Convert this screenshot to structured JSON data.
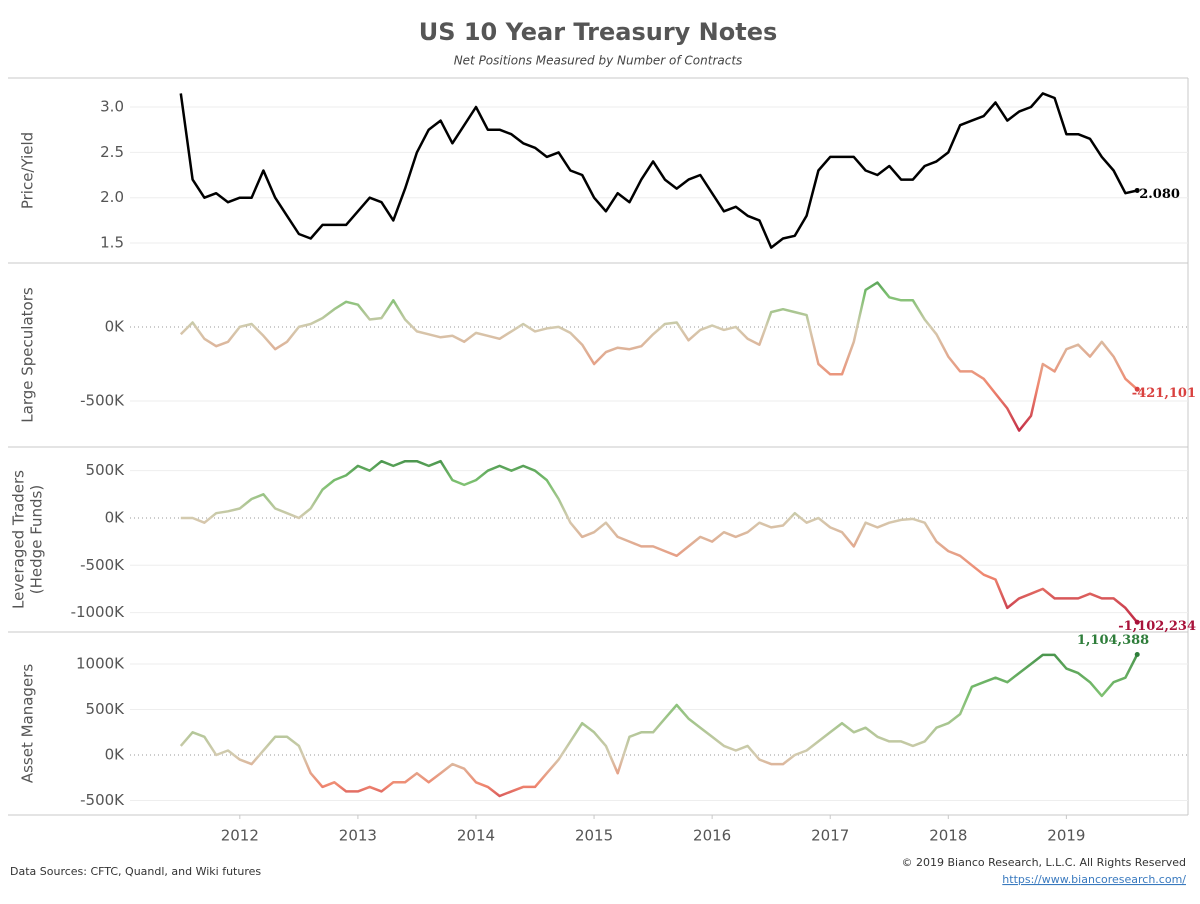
{
  "chart_data": {
    "type": "line",
    "title": "US 10 Year Treasury Notes",
    "subtitle": "Net Positions Measured by Number of Contracts",
    "source": "Data Sources: CFTC, Quandl, and Wiki futures",
    "copyright": "© 2019 Bianco Research, L.L.C. All Rights Reserved",
    "link": "https://www.biancoresearch.com/",
    "xlim": [
      2011.07,
      2020.03
    ],
    "xticks": [
      2012,
      2013,
      2014,
      2015,
      2016,
      2017,
      2018,
      2019
    ],
    "gradient": [
      "#b5123a",
      "#f08870",
      "#d4cbb0",
      "#7cc070",
      "#2e7d3a"
    ],
    "x": [
      2011.5,
      2011.6,
      2011.7,
      2011.8,
      2011.9,
      2012.0,
      2012.1,
      2012.2,
      2012.3,
      2012.4,
      2012.5,
      2012.6,
      2012.7,
      2012.8,
      2012.9,
      2013.0,
      2013.1,
      2013.2,
      2013.3,
      2013.4,
      2013.5,
      2013.6,
      2013.7,
      2013.8,
      2013.9,
      2014.0,
      2014.1,
      2014.2,
      2014.3,
      2014.4,
      2014.5,
      2014.6,
      2014.7,
      2014.8,
      2014.9,
      2015.0,
      2015.1,
      2015.2,
      2015.3,
      2015.4,
      2015.5,
      2015.6,
      2015.7,
      2015.8,
      2015.9,
      2016.0,
      2016.1,
      2016.2,
      2016.3,
      2016.4,
      2016.5,
      2016.6,
      2016.7,
      2016.8,
      2016.9,
      2017.0,
      2017.1,
      2017.2,
      2017.3,
      2017.4,
      2017.5,
      2017.6,
      2017.7,
      2017.8,
      2017.9,
      2018.0,
      2018.1,
      2018.2,
      2018.3,
      2018.4,
      2018.5,
      2018.6,
      2018.7,
      2018.8,
      2018.9,
      2019.0,
      2019.1,
      2019.2,
      2019.3,
      2019.4,
      2019.5,
      2019.6
    ],
    "panels": [
      {
        "ylabel": [
          "Price/Yield"
        ],
        "color": "#000000",
        "label_color": "#000000",
        "ylim": [
          1.28,
          3.32
        ],
        "yticks": [
          1.5,
          {
            "value": 2,
            "label": "2.0"
          },
          2.5,
          {
            "value": 3,
            "label": "3.0"
          }
        ],
        "values": [
          3.15,
          2.2,
          2.0,
          2.05,
          1.95,
          2.0,
          2.0,
          2.3,
          2.0,
          1.8,
          1.6,
          1.55,
          1.7,
          1.7,
          1.7,
          1.85,
          2.0,
          1.95,
          1.75,
          2.1,
          2.5,
          2.75,
          2.85,
          2.6,
          2.8,
          3.0,
          2.75,
          2.75,
          2.7,
          2.6,
          2.55,
          2.45,
          2.5,
          2.3,
          2.25,
          2.0,
          1.85,
          2.05,
          1.95,
          2.2,
          2.4,
          2.2,
          2.1,
          2.2,
          2.25,
          2.05,
          1.85,
          1.9,
          1.8,
          1.75,
          1.45,
          1.55,
          1.58,
          1.8,
          2.3,
          2.45,
          2.45,
          2.45,
          2.3,
          2.25,
          2.35,
          2.2,
          2.2,
          2.35,
          2.4,
          2.5,
          2.8,
          2.85,
          2.9,
          3.05,
          2.85,
          2.95,
          3.0,
          3.15,
          3.1,
          2.7,
          2.7,
          2.65,
          2.45,
          2.3,
          2.05,
          2.08
        ],
        "value_label": "2.080"
      },
      {
        "ylabel": [
          "Large Speculators"
        ],
        "label_color": "#d9413f",
        "ylim": [
          -811000,
          432000
        ],
        "yticks": [
          {
            "value": -500000,
            "label": "-500K"
          },
          {
            "value": 0,
            "label": "0K"
          }
        ],
        "values": [
          -50000,
          30000,
          -80000,
          -130000,
          -100000,
          0,
          20000,
          -60000,
          -150000,
          -100000,
          0,
          20000,
          60000,
          120000,
          170000,
          150000,
          50000,
          60000,
          180000,
          50000,
          -30000,
          -50000,
          -70000,
          -60000,
          -100000,
          -40000,
          -60000,
          -80000,
          -30000,
          20000,
          -30000,
          -10000,
          0,
          -40000,
          -120000,
          -250000,
          -170000,
          -140000,
          -150000,
          -130000,
          -50000,
          20000,
          30000,
          -90000,
          -20000,
          10000,
          -20000,
          0,
          -80000,
          -120000,
          100000,
          120000,
          100000,
          80000,
          -250000,
          -320000,
          -320000,
          -100000,
          250000,
          300000,
          200000,
          180000,
          180000,
          50000,
          -50000,
          -200000,
          -300000,
          -300000,
          -350000,
          -450000,
          -550000,
          -700000,
          -600000,
          -250000,
          -300000,
          -150000,
          -120000,
          -200000,
          -100000,
          -200000,
          -350000,
          -421101
        ],
        "value_label": "-421,101"
      },
      {
        "ylabel": [
          "Leveraged Traders",
          "(Hedge Funds)"
        ],
        "label_color": "#a8123a",
        "ylim": [
          -1205000,
          750000
        ],
        "yticks": [
          {
            "value": -1000000,
            "label": "-1000K"
          },
          {
            "value": -500000,
            "label": "-500K"
          },
          {
            "value": 0,
            "label": "0K"
          },
          {
            "value": 500000,
            "label": "500K"
          }
        ],
        "values": [
          0,
          0,
          -50000,
          50000,
          70000,
          100000,
          200000,
          250000,
          100000,
          50000,
          0,
          100000,
          300000,
          400000,
          450000,
          550000,
          500000,
          600000,
          550000,
          600000,
          600000,
          550000,
          600000,
          400000,
          350000,
          400000,
          500000,
          550000,
          500000,
          550000,
          500000,
          400000,
          200000,
          -50000,
          -200000,
          -150000,
          -50000,
          -200000,
          -250000,
          -300000,
          -300000,
          -350000,
          -400000,
          -300000,
          -200000,
          -250000,
          -150000,
          -200000,
          -150000,
          -50000,
          -100000,
          -80000,
          50000,
          -50000,
          0,
          -100000,
          -150000,
          -300000,
          -50000,
          -100000,
          -50000,
          -20000,
          -10000,
          -50000,
          -250000,
          -350000,
          -400000,
          -500000,
          -600000,
          -650000,
          -950000,
          -850000,
          -800000,
          -750000,
          -850000,
          -850000,
          -850000,
          -800000,
          -850000,
          -850000,
          -950000,
          -1102234
        ],
        "value_label": "-1,102,234"
      },
      {
        "ylabel": [
          "Asset Managers"
        ],
        "label_color": "#2e7d3a",
        "ylim": [
          -659000,
          1352000
        ],
        "yticks": [
          {
            "value": -500000,
            "label": "-500K"
          },
          {
            "value": 0,
            "label": "0K"
          },
          {
            "value": 500000,
            "label": "500K"
          },
          {
            "value": 1000000,
            "label": "1000K"
          }
        ],
        "values": [
          100000,
          250000,
          200000,
          0,
          50000,
          -50000,
          -100000,
          50000,
          200000,
          200000,
          100000,
          -200000,
          -350000,
          -300000,
          -400000,
          -400000,
          -350000,
          -400000,
          -300000,
          -300000,
          -200000,
          -300000,
          -200000,
          -100000,
          -150000,
          -300000,
          -350000,
          -450000,
          -400000,
          -350000,
          -350000,
          -200000,
          -50000,
          150000,
          350000,
          250000,
          100000,
          -200000,
          200000,
          250000,
          250000,
          400000,
          550000,
          400000,
          300000,
          200000,
          100000,
          50000,
          100000,
          -50000,
          -100000,
          -100000,
          0,
          50000,
          150000,
          250000,
          350000,
          250000,
          300000,
          200000,
          150000,
          150000,
          100000,
          150000,
          300000,
          350000,
          450000,
          750000,
          800000,
          850000,
          800000,
          900000,
          1000000,
          1100000,
          1100000,
          950000,
          900000,
          800000,
          650000,
          800000,
          850000,
          1104388
        ],
        "value_label": "1,104,388"
      }
    ]
  }
}
